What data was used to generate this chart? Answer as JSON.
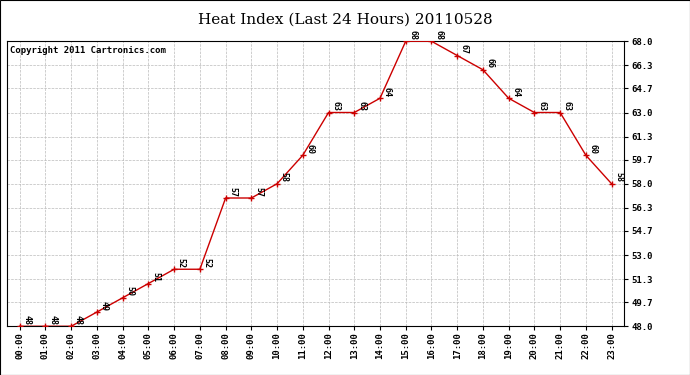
{
  "title": "Heat Index (Last 24 Hours) 20110528",
  "copyright": "Copyright 2011 Cartronics.com",
  "x_labels": [
    "00:00",
    "01:00",
    "02:00",
    "03:00",
    "04:00",
    "05:00",
    "06:00",
    "07:00",
    "08:00",
    "09:00",
    "10:00",
    "11:00",
    "12:00",
    "13:00",
    "14:00",
    "15:00",
    "16:00",
    "17:00",
    "18:00",
    "19:00",
    "20:00",
    "21:00",
    "22:00",
    "23:00"
  ],
  "data_points": [
    [
      0,
      48
    ],
    [
      1,
      48
    ],
    [
      2,
      48
    ],
    [
      3,
      49
    ],
    [
      4,
      50
    ],
    [
      5,
      51
    ],
    [
      6,
      52
    ],
    [
      7,
      52
    ],
    [
      8,
      57
    ],
    [
      9,
      57
    ],
    [
      10,
      58
    ],
    [
      11,
      60
    ],
    [
      12,
      63
    ],
    [
      13,
      63
    ],
    [
      14,
      64
    ],
    [
      15,
      68
    ],
    [
      16,
      68
    ],
    [
      17,
      67
    ],
    [
      18,
      66
    ],
    [
      19,
      64
    ],
    [
      20,
      63
    ],
    [
      21,
      63
    ],
    [
      22,
      60
    ],
    [
      23,
      58
    ]
  ],
  "ylim": [
    48.0,
    68.0
  ],
  "yticks": [
    48.0,
    49.7,
    51.3,
    53.0,
    54.7,
    56.3,
    58.0,
    59.7,
    61.3,
    63.0,
    64.7,
    66.3,
    68.0
  ],
  "ytick_labels": [
    "48.0",
    "49.7",
    "51.3",
    "53.0",
    "54.7",
    "56.3",
    "58.0",
    "59.7",
    "61.3",
    "63.0",
    "64.7",
    "66.3",
    "68.0"
  ],
  "line_color": "#cc0000",
  "marker_color": "#cc0000",
  "grid_color": "#bbbbbb",
  "background_color": "#ffffff",
  "title_fontsize": 11,
  "tick_fontsize": 6.5,
  "annotation_fontsize": 6,
  "copyright_fontsize": 6.5
}
